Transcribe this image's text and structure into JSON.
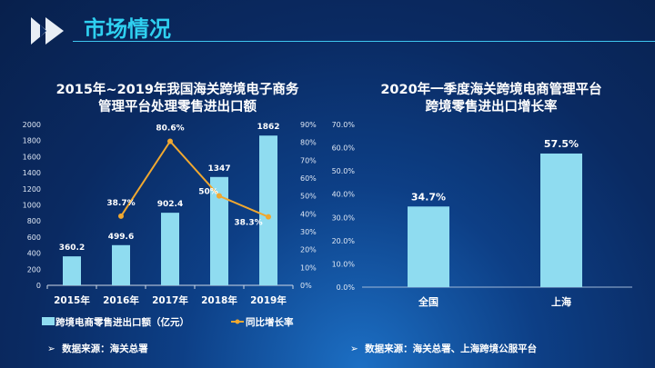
{
  "header": {
    "title": "市场情况",
    "icon": "fast-forward-icon"
  },
  "colors": {
    "bar": "#8fdcf0",
    "line": "#f0a830",
    "accent": "#2fd0f0"
  },
  "chart_data": [
    {
      "type": "bar+line",
      "title": "2015年~2019年我国海关跨境电子商务管理平台处理零售进出口额",
      "title_lines": [
        "2015年~2019年我国海关跨境电子商务",
        "管理平台处理零售进出口额"
      ],
      "categories": [
        "2015年",
        "2016年",
        "2017年",
        "2018年",
        "2019年"
      ],
      "series": [
        {
          "name": "跨境电商零售进出口额（亿元）",
          "type": "bar",
          "axis": "left",
          "values": [
            360.2,
            499.6,
            902.4,
            1347,
            1862
          ],
          "labels": [
            "360.2",
            "499.6",
            "902.4",
            "1347",
            "1862"
          ]
        },
        {
          "name": "同比增长率",
          "type": "line",
          "axis": "right",
          "values": [
            null,
            38.7,
            80.6,
            50,
            38.3
          ],
          "labels": [
            "",
            "38.7%",
            "80.6%",
            "50%",
            "38.3%"
          ]
        }
      ],
      "ylim": [
        0,
        2000
      ],
      "yticks": [
        "0",
        "200",
        "400",
        "600",
        "800",
        "1000",
        "1200",
        "1400",
        "1600",
        "1800",
        "2000"
      ],
      "y2lim": [
        0,
        90
      ],
      "y2ticks": [
        "0%",
        "10%",
        "20%",
        "30%",
        "40%",
        "50%",
        "60%",
        "70%",
        "80%",
        "90%"
      ],
      "legend": "bottom",
      "grid": false
    },
    {
      "type": "bar",
      "title": "2020年一季度海关跨境电商管理平台跨境零售进出口增长率",
      "title_lines": [
        "2020年一季度海关跨境电商管理平台",
        "跨境零售进出口增长率"
      ],
      "categories": [
        "全国",
        "上海"
      ],
      "values": [
        34.7,
        57.5
      ],
      "labels": [
        "34.7%",
        "57.5%"
      ],
      "ylim": [
        0,
        70
      ],
      "yticks": [
        "0.0%",
        "10.0%",
        "20.0%",
        "30.0%",
        "40.0%",
        "50.0%",
        "60.0%",
        "70.0%"
      ],
      "grid": false
    }
  ],
  "sources": [
    "数据来源：海关总署",
    "数据来源：海关总署、上海跨境公服平台"
  ]
}
